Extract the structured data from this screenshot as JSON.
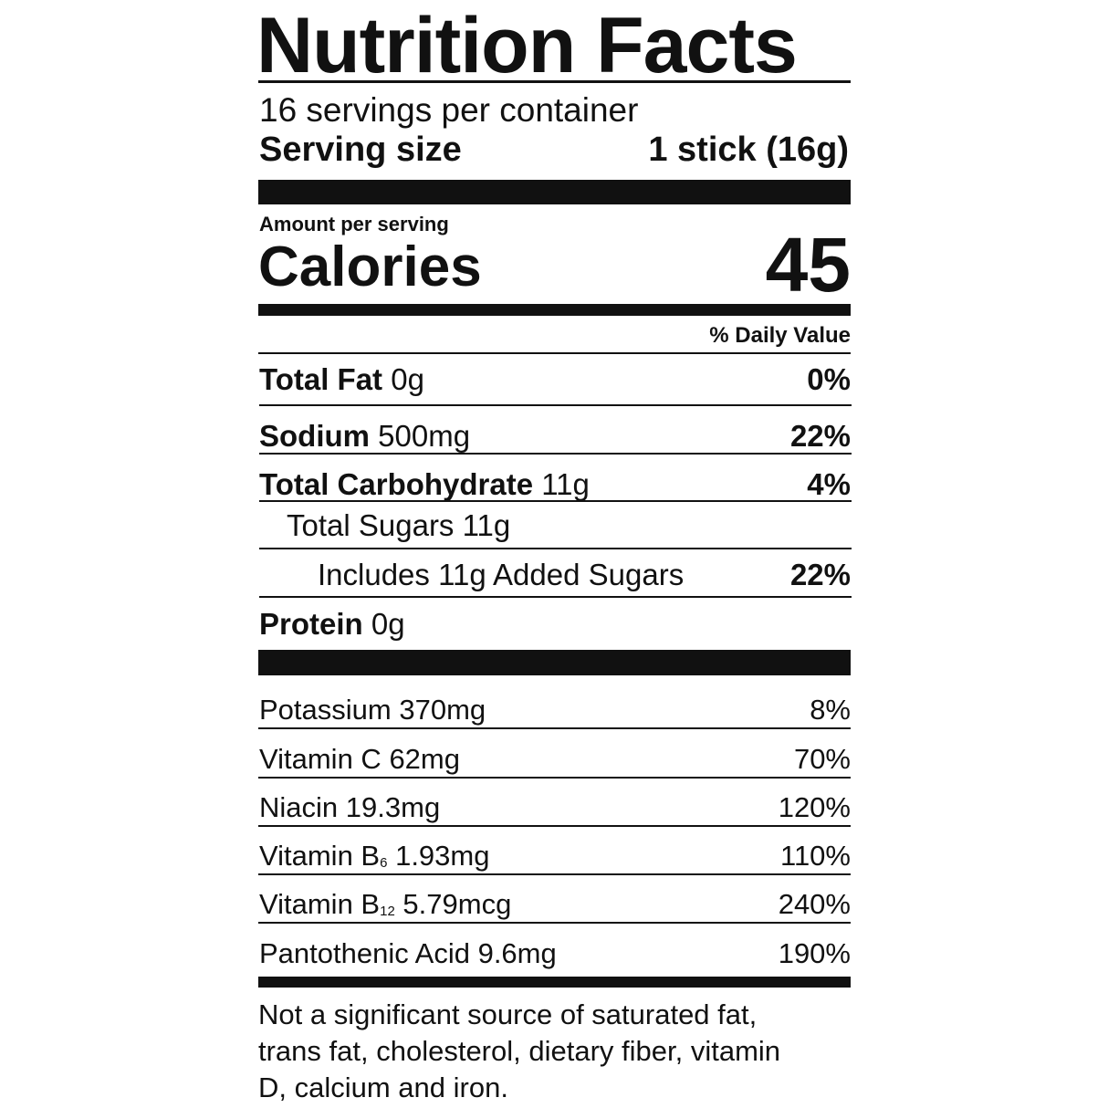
{
  "title": "Nutrition Facts",
  "servings": "16 servings per container",
  "serving_size": {
    "label": "Serving size",
    "value": "1 stick (16g)"
  },
  "amount_per_serving": "Amount per serving",
  "calories": {
    "label": "Calories",
    "value": "45"
  },
  "daily_value_header": "% Daily Value",
  "nutrients": [
    {
      "name": "Total Fat",
      "amount": "0g",
      "dv": "0%"
    },
    {
      "name": "Sodium",
      "amount": "500mg",
      "dv": "22%"
    },
    {
      "name": "Total Carbohydrate",
      "amount": "11g",
      "dv": "4%"
    },
    {
      "name": "Total Sugars",
      "amount": "11g"
    },
    {
      "name": "Includes 11g Added Sugars",
      "dv": "22%"
    },
    {
      "name": "Protein",
      "amount": "0g"
    }
  ],
  "vitamins": [
    {
      "name": "Potassium",
      "amount": "370mg",
      "dv": "8%"
    },
    {
      "name": "Vitamin C",
      "amount": "62mg",
      "dv": "70%"
    },
    {
      "name": "Niacin",
      "amount": "19.3mg",
      "dv": "120%"
    },
    {
      "name": "Vitamin B",
      "sub": "6",
      "amount": "1.93mg",
      "dv": "110%"
    },
    {
      "name": "Vitamin B",
      "sub": "12",
      "amount": "5.79mcg",
      "dv": "240%"
    },
    {
      "name": "Pantothenic Acid",
      "amount": "9.6mg",
      "dv": "190%"
    }
  ],
  "footnote": [
    "Not a significant source of saturated fat,",
    "trans fat, cholesterol, dietary fiber, vitamin",
    "D, calcium and iron."
  ]
}
